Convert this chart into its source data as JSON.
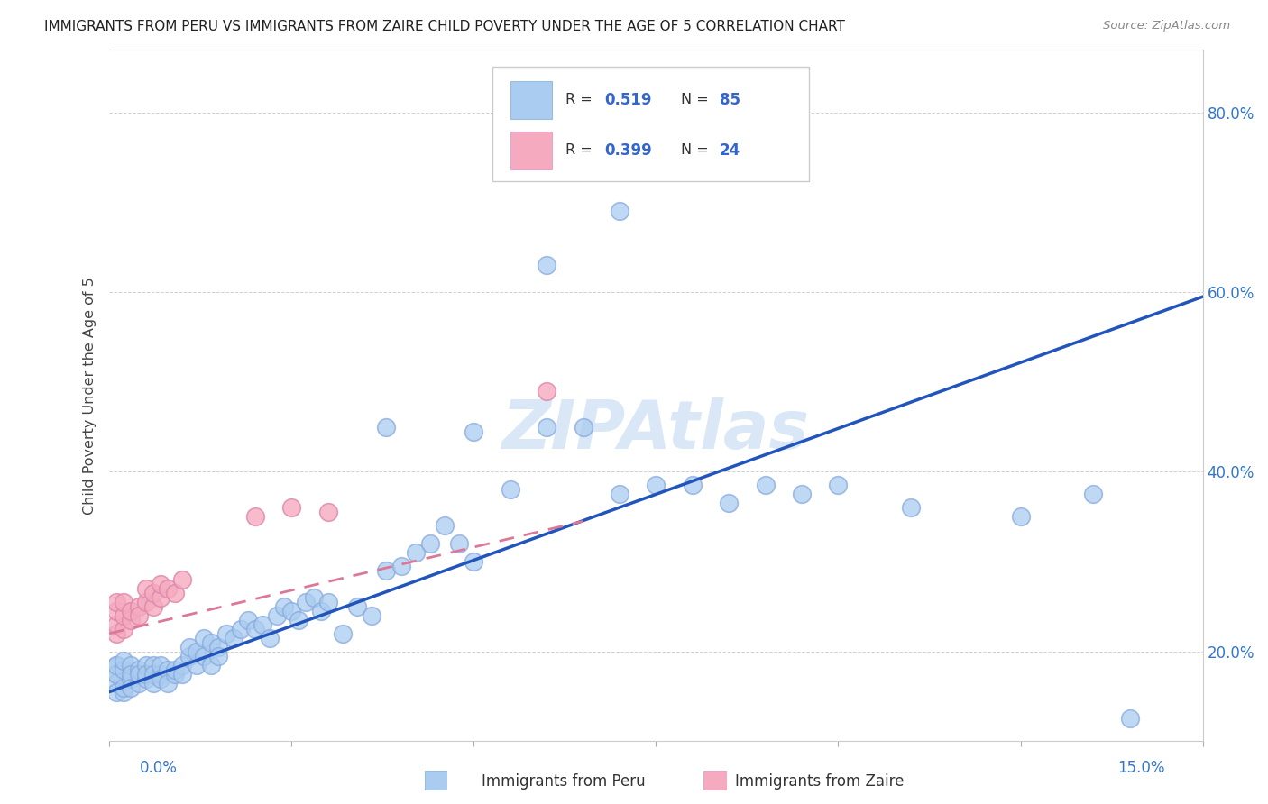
{
  "title": "IMMIGRANTS FROM PERU VS IMMIGRANTS FROM ZAIRE CHILD POVERTY UNDER THE AGE OF 5 CORRELATION CHART",
  "source": "Source: ZipAtlas.com",
  "ylabel": "Child Poverty Under the Age of 5",
  "ytick_vals": [
    0.2,
    0.4,
    0.6,
    0.8
  ],
  "xmin": 0.0,
  "xmax": 0.15,
  "ymin": 0.1,
  "ymax": 0.87,
  "legend_peru_R": "0.519",
  "legend_peru_N": "85",
  "legend_zaire_R": "0.399",
  "legend_zaire_N": "24",
  "peru_color": "#aaccf0",
  "zaire_color": "#f5aac0",
  "line_peru_color": "#2255bb",
  "line_zaire_color": "#dd7799",
  "peru_line_y0": 0.155,
  "peru_line_y1": 0.595,
  "zaire_line_x0": 0.0,
  "zaire_line_x1": 0.065,
  "zaire_line_y0": 0.22,
  "zaire_line_y1": 0.345,
  "peru_x": [
    0.001,
    0.001,
    0.001,
    0.001,
    0.001,
    0.001,
    0.002,
    0.002,
    0.002,
    0.002,
    0.003,
    0.003,
    0.003,
    0.003,
    0.004,
    0.004,
    0.004,
    0.005,
    0.005,
    0.005,
    0.006,
    0.006,
    0.006,
    0.007,
    0.007,
    0.007,
    0.008,
    0.008,
    0.009,
    0.009,
    0.01,
    0.01,
    0.011,
    0.011,
    0.012,
    0.012,
    0.013,
    0.013,
    0.014,
    0.014,
    0.015,
    0.015,
    0.016,
    0.017,
    0.018,
    0.019,
    0.02,
    0.021,
    0.022,
    0.023,
    0.024,
    0.025,
    0.026,
    0.027,
    0.028,
    0.029,
    0.03,
    0.032,
    0.034,
    0.036,
    0.038,
    0.04,
    0.042,
    0.044,
    0.046,
    0.048,
    0.05,
    0.055,
    0.06,
    0.065,
    0.07,
    0.075,
    0.08,
    0.085,
    0.09,
    0.095,
    0.1,
    0.11,
    0.125,
    0.135,
    0.038,
    0.05,
    0.06,
    0.07,
    0.14
  ],
  "peru_y": [
    0.185,
    0.175,
    0.165,
    0.155,
    0.175,
    0.185,
    0.18,
    0.19,
    0.155,
    0.16,
    0.17,
    0.185,
    0.175,
    0.16,
    0.165,
    0.18,
    0.175,
    0.185,
    0.17,
    0.175,
    0.185,
    0.175,
    0.165,
    0.175,
    0.185,
    0.17,
    0.18,
    0.165,
    0.175,
    0.18,
    0.185,
    0.175,
    0.195,
    0.205,
    0.185,
    0.2,
    0.215,
    0.195,
    0.21,
    0.185,
    0.205,
    0.195,
    0.22,
    0.215,
    0.225,
    0.235,
    0.225,
    0.23,
    0.215,
    0.24,
    0.25,
    0.245,
    0.235,
    0.255,
    0.26,
    0.245,
    0.255,
    0.22,
    0.25,
    0.24,
    0.29,
    0.295,
    0.31,
    0.32,
    0.34,
    0.32,
    0.3,
    0.38,
    0.45,
    0.45,
    0.375,
    0.385,
    0.385,
    0.365,
    0.385,
    0.375,
    0.385,
    0.36,
    0.35,
    0.375,
    0.45,
    0.445,
    0.63,
    0.69,
    0.125
  ],
  "zaire_x": [
    0.001,
    0.001,
    0.001,
    0.001,
    0.002,
    0.002,
    0.002,
    0.003,
    0.003,
    0.004,
    0.004,
    0.005,
    0.005,
    0.006,
    0.006,
    0.007,
    0.007,
    0.008,
    0.009,
    0.01,
    0.02,
    0.025,
    0.03,
    0.06
  ],
  "zaire_y": [
    0.22,
    0.23,
    0.245,
    0.255,
    0.225,
    0.24,
    0.255,
    0.235,
    0.245,
    0.25,
    0.24,
    0.255,
    0.27,
    0.25,
    0.265,
    0.26,
    0.275,
    0.27,
    0.265,
    0.28,
    0.35,
    0.36,
    0.355,
    0.49
  ]
}
